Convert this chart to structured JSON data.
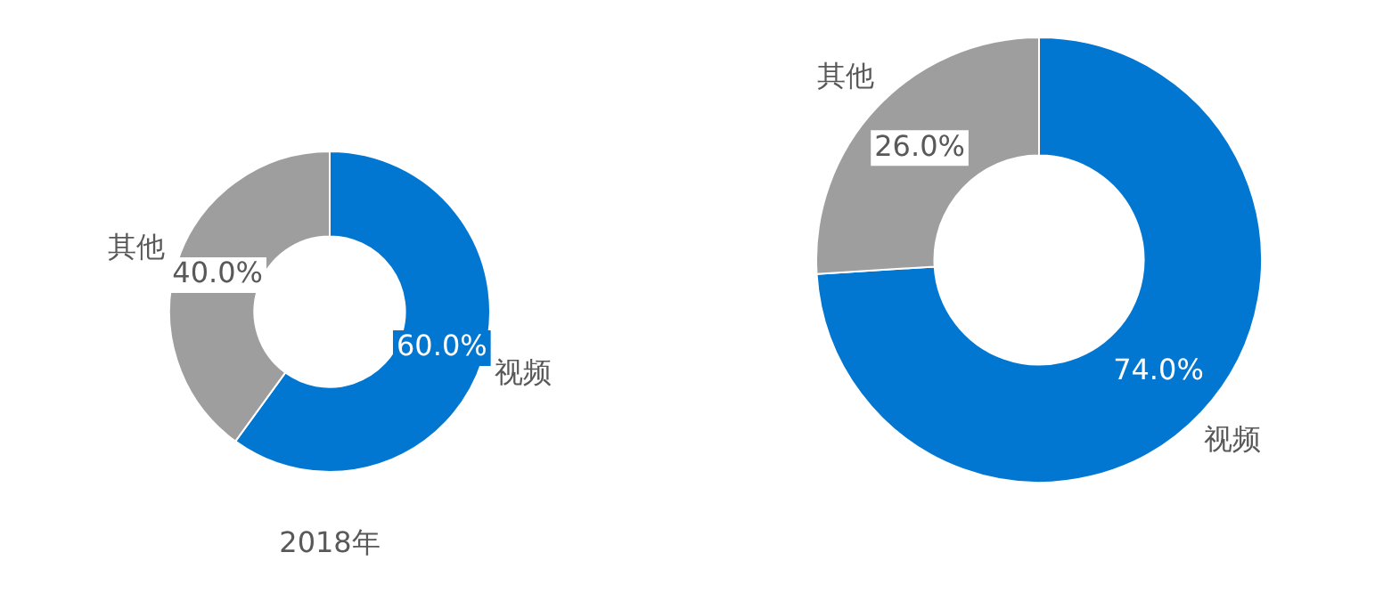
{
  "chart_data": [
    {
      "type": "donut",
      "title": "2018年",
      "categories": [
        "视频",
        "其他"
      ],
      "values": [
        60,
        40
      ],
      "colors": [
        "#0277d1",
        "#9e9e9e"
      ],
      "value_labels": [
        "60.0%",
        "40.0%"
      ]
    },
    {
      "type": "donut",
      "categories": [
        "视频",
        "其他"
      ],
      "values": [
        74,
        26
      ],
      "colors": [
        "#0277d1",
        "#9e9e9e"
      ],
      "value_labels": [
        "74.0%",
        "26.0%"
      ]
    }
  ]
}
